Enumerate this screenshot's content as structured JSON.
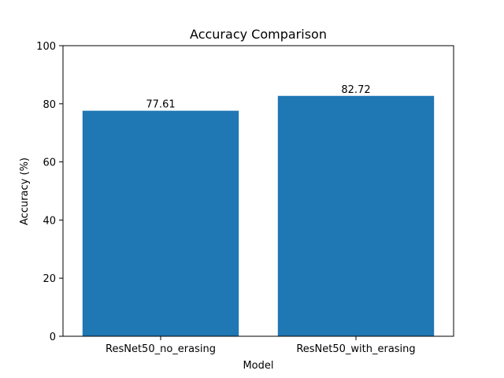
{
  "chart_data": {
    "type": "bar",
    "title": "Accuracy Comparison",
    "xlabel": "Model",
    "ylabel": "Accuracy (%)",
    "categories": [
      "ResNet50_no_erasing",
      "ResNet50_with_erasing"
    ],
    "values": [
      77.61,
      82.72
    ],
    "value_labels": [
      "77.61",
      "82.72"
    ],
    "ylim": [
      0,
      100
    ],
    "yticks": [
      0,
      20,
      40,
      60,
      80,
      100
    ],
    "grid": false,
    "bar_color": "#1f77b4"
  }
}
